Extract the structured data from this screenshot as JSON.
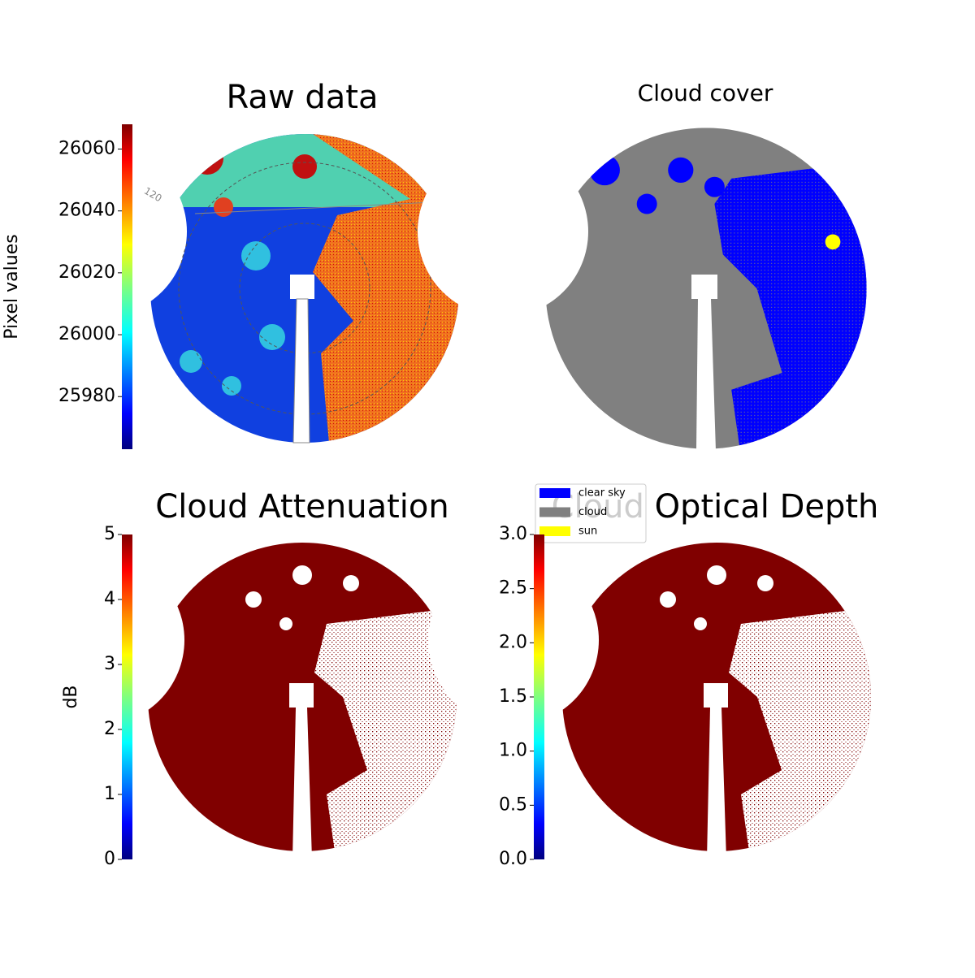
{
  "chart_data": [
    {
      "type": "image",
      "title": "Raw data",
      "colorbar_label": "Pixel values",
      "annotation": "120",
      "ylim": [
        25963,
        26068
      ],
      "yticks": [
        25980,
        26000,
        26020,
        26040,
        26060
      ]
    },
    {
      "type": "image",
      "title": "Cloud cover",
      "legend": [
        {
          "name": "clear sky",
          "color": "#0000ff"
        },
        {
          "name": "cloud",
          "color": "#808080"
        },
        {
          "name": "sun",
          "color": "#ffff00"
        }
      ]
    },
    {
      "type": "image",
      "title": "Cloud Attenuation",
      "colorbar_label": "dB",
      "ylim": [
        0,
        5
      ],
      "yticks": [
        0,
        1,
        2,
        3,
        4,
        5
      ]
    },
    {
      "type": "image",
      "title": "Cloud Optical Depth",
      "ylim": [
        0,
        3
      ],
      "yticks": [
        {
          "value": 0,
          "label": "0.0"
        },
        0.5,
        {
          "value": 1,
          "label": "1.0"
        },
        1.5,
        {
          "value": 2,
          "label": "2.0"
        },
        2.5,
        {
          "value": 3,
          "label": "3.0"
        }
      ]
    }
  ]
}
